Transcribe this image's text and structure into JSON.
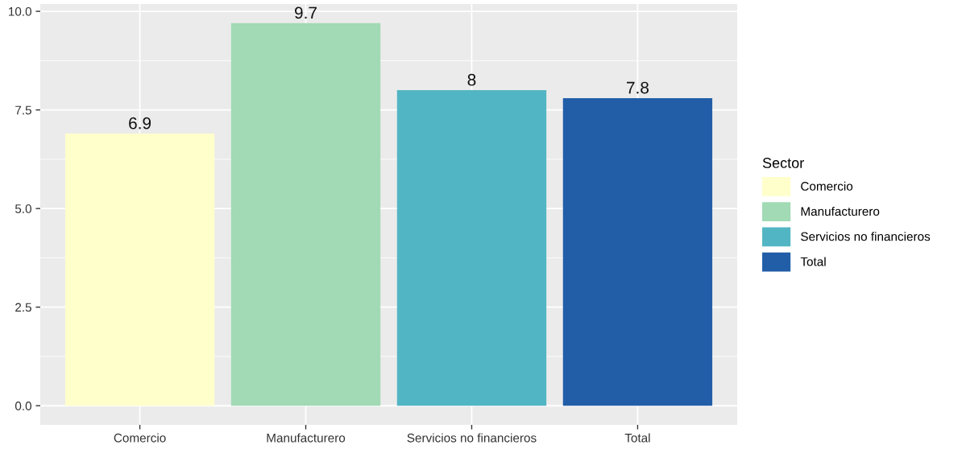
{
  "chart_data": {
    "type": "bar",
    "categories": [
      "Comercio",
      "Manufacturero",
      "Servicios no financieros",
      "Total"
    ],
    "series": [
      {
        "name": "Comercio",
        "color": "#ffffcc",
        "values": [
          6.9,
          null,
          null,
          null
        ]
      },
      {
        "name": "Manufacturero",
        "color": "#a1dab4",
        "values": [
          null,
          9.7,
          null,
          null
        ]
      },
      {
        "name": "Servicios no financieros",
        "color": "#52b5c4",
        "values": [
          null,
          null,
          8,
          null
        ]
      },
      {
        "name": "Total",
        "color": "#225ea8",
        "values": [
          null,
          null,
          null,
          7.8
        ]
      }
    ],
    "ylim": [
      -0.485,
      10.185
    ],
    "yticks": [
      {
        "value": 0,
        "label": "0.0"
      },
      {
        "value": 2.5,
        "label": "2.5"
      },
      {
        "value": 5,
        "label": "5.0"
      },
      {
        "value": 7.5,
        "label": "7.5"
      },
      {
        "value": 10,
        "label": "10.0"
      }
    ],
    "grid": true,
    "data_labels": true,
    "legend": "right",
    "legend_title": "Sector"
  }
}
